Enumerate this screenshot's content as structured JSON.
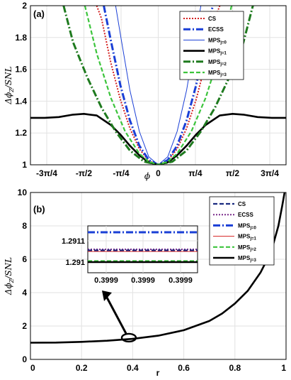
{
  "chart_data": [
    {
      "type": "line",
      "panel_label": "(a)",
      "xlabel": "ϕ",
      "ylabel": "Δϕ_Z/SNL",
      "xlim": [
        -2.7,
        2.7
      ],
      "ylim": [
        1,
        2
      ],
      "xticks": [
        {
          "value": -2.356,
          "label": "-3π/4"
        },
        {
          "value": -1.5708,
          "label": "-π/2"
        },
        {
          "value": -0.7854,
          "label": "-π/4"
        },
        {
          "value": 0,
          "label": "0"
        },
        {
          "value": 0.7854,
          "label": "π/4"
        },
        {
          "value": 1.5708,
          "label": "π/2"
        },
        {
          "value": 2.356,
          "label": "3π/4"
        }
      ],
      "yticks": [
        "1",
        "1.2",
        "1.4",
        "1.6",
        "1.8",
        "2"
      ],
      "grid": true,
      "legend_position": "top-right",
      "series": [
        {
          "name": "CS",
          "color": "#d42020",
          "style": "dotted",
          "x": [
            -2.7,
            -1.3,
            -1.2,
            -1.0,
            -0.8,
            -0.6,
            -0.4,
            -0.2,
            0,
            0.2,
            0.4,
            0.6,
            0.8,
            1.0,
            1.2,
            1.3,
            2.7
          ],
          "y": [
            null,
            2.0,
            1.92,
            1.64,
            1.41,
            1.23,
            1.1,
            1.025,
            1.0,
            1.025,
            1.1,
            1.23,
            1.41,
            1.64,
            1.92,
            2.0,
            null
          ]
        },
        {
          "name": "ECSS",
          "color": "#1a3fd6",
          "style": "dashdot",
          "x": [
            -2.7,
            -1.15,
            -1.0,
            -0.8,
            -0.6,
            -0.4,
            -0.2,
            0,
            0.2,
            0.4,
            0.6,
            0.8,
            1.0,
            1.15,
            2.7
          ],
          "y": [
            null,
            2.0,
            1.78,
            1.5,
            1.28,
            1.12,
            1.03,
            1.0,
            1.03,
            1.12,
            1.28,
            1.5,
            1.78,
            2.0,
            null
          ]
        },
        {
          "name": "MPS",
          "subscript": "j=0",
          "color": "#1a3fd6",
          "style": "thin",
          "x": [
            -2.7,
            -0.9,
            -0.8,
            -0.6,
            -0.4,
            -0.2,
            0,
            0.2,
            0.4,
            0.6,
            0.8,
            0.9,
            2.7
          ],
          "y": [
            null,
            2.0,
            1.82,
            1.47,
            1.21,
            1.05,
            1.0,
            1.05,
            1.21,
            1.47,
            1.82,
            2.0,
            null
          ]
        },
        {
          "name": "MPS",
          "subscript": "j=1",
          "color": "#000000",
          "style": "thick",
          "x": [
            -2.7,
            -2.4,
            -2.1,
            -1.8,
            -1.5708,
            -1.3,
            -1.0,
            -0.8,
            -0.6,
            -0.4,
            -0.2,
            0,
            0.2,
            0.4,
            0.6,
            0.8,
            1.0,
            1.3,
            1.5708,
            1.8,
            2.1,
            2.4,
            2.7
          ],
          "y": [
            1.295,
            1.295,
            1.3,
            1.315,
            1.32,
            1.31,
            1.25,
            1.19,
            1.12,
            1.06,
            1.015,
            1.0,
            1.015,
            1.06,
            1.12,
            1.19,
            1.25,
            1.31,
            1.32,
            1.315,
            1.3,
            1.295,
            1.295
          ]
        },
        {
          "name": "MPS",
          "subscript": "j=2",
          "color": "#1e7a1e",
          "style": "dashdot",
          "x": [
            -2.7,
            -2.0,
            -1.8,
            -1.5,
            -1.2,
            -0.9,
            -0.6,
            -0.3,
            0,
            0.3,
            0.6,
            0.9,
            1.2,
            1.5,
            1.8,
            2.0,
            2.7
          ],
          "y": [
            null,
            2.0,
            1.77,
            1.55,
            1.36,
            1.21,
            1.09,
            1.02,
            1.0,
            1.02,
            1.09,
            1.21,
            1.36,
            1.55,
            1.77,
            2.0,
            null
          ]
        },
        {
          "name": "MPS",
          "subscript": "j=3",
          "color": "#3cc43c",
          "style": "dashed",
          "x": [
            -2.7,
            -1.55,
            -1.3,
            -1.0,
            -0.7,
            -0.4,
            -0.2,
            0,
            0.2,
            0.4,
            0.7,
            1.0,
            1.3,
            1.55,
            2.7
          ],
          "y": [
            null,
            2.0,
            1.7,
            1.42,
            1.21,
            1.07,
            1.02,
            1.0,
            1.02,
            1.07,
            1.21,
            1.42,
            1.7,
            2.0,
            null
          ]
        }
      ]
    },
    {
      "type": "line",
      "panel_label": "(b)",
      "xlabel": "r",
      "ylabel": "Δϕ_Z/SNL",
      "xlim": [
        0,
        1
      ],
      "ylim": [
        0,
        10
      ],
      "xticks": [
        "0",
        "0.2",
        "0.4",
        "0.6",
        "0.8",
        "1"
      ],
      "yticks": [
        "0",
        "2",
        "4",
        "6",
        "8",
        "10"
      ],
      "grid": true,
      "legend_position": "top-right",
      "series_x": [
        0,
        0.1,
        0.2,
        0.3,
        0.4,
        0.5,
        0.6,
        0.7,
        0.75,
        0.8,
        0.85,
        0.9,
        0.93,
        0.95,
        0.97,
        0.985,
        1.0
      ],
      "series_y": [
        1.0,
        1.01,
        1.05,
        1.12,
        1.23,
        1.42,
        1.75,
        2.3,
        2.75,
        3.35,
        4.1,
        5.2,
        6.1,
        6.9,
        8.0,
        9.2,
        10.5
      ],
      "series": [
        {
          "name": "CS",
          "color": "#1a2a80",
          "style": "dashed"
        },
        {
          "name": "ECSS",
          "color": "#7a2a8a",
          "style": "dotted"
        },
        {
          "name": "MPS",
          "subscript": "j=0",
          "color": "#1a3fd6",
          "style": "dashdot"
        },
        {
          "name": "MPS",
          "subscript": "j=1",
          "color": "#d42020",
          "style": "thin"
        },
        {
          "name": "MPS",
          "subscript": "j=2",
          "color": "#3cc43c",
          "style": "dashed"
        },
        {
          "name": "MPS",
          "subscript": "j=3",
          "color": "#000000",
          "style": "thick"
        }
      ],
      "inset": {
        "xticks": [
          "0.3999",
          "0.3999",
          "0.3999"
        ],
        "yticks": [
          "1.2911",
          "1.291"
        ],
        "levels": [
          {
            "series": "MPS j=0",
            "value": 1.29114,
            "color": "#1a3fd6",
            "style": "dashdot"
          },
          {
            "series": "ECSS",
            "value": 1.29106,
            "color": "#7a2a8a",
            "style": "dotted"
          },
          {
            "series": "CS",
            "value": 1.291055,
            "color": "#1a2a80",
            "style": "dashed"
          },
          {
            "series": "MPS j=1",
            "value": 1.29105,
            "color": "#d42020",
            "style": "thin"
          },
          {
            "series": "MPS j=2",
            "value": 1.291005,
            "color": "#3cc43c",
            "style": "dashed"
          },
          {
            "series": "MPS j=3",
            "value": 1.291,
            "color": "#000000",
            "style": "thick"
          }
        ]
      }
    }
  ]
}
